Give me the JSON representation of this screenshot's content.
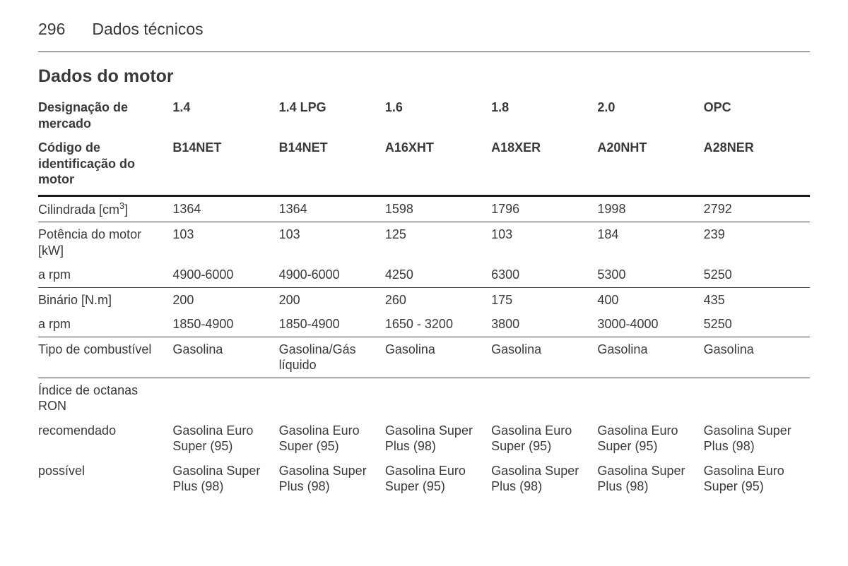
{
  "page": {
    "number": "296",
    "title": "Dados técnicos"
  },
  "section_title": "Dados do motor",
  "columns": [
    "1.4",
    "1.4 LPG",
    "1.6",
    "1.8",
    "2.0",
    "OPC"
  ],
  "header_rows": {
    "designation_label": "Designação de mercado",
    "engine_code_label": "Código de identificação do motor",
    "engine_codes": [
      "B14NET",
      "B14NET",
      "A16XHT",
      "A18XER",
      "A20NHT",
      "A28NER"
    ]
  },
  "rows": {
    "displacement": {
      "label_prefix": "Cilindrada [cm",
      "label_sup": "3",
      "label_suffix": "]",
      "values": [
        "1364",
        "1364",
        "1598",
        "1796",
        "1998",
        "2792"
      ]
    },
    "power": {
      "label": "Potência do motor [kW]",
      "values": [
        "103",
        "103",
        "125",
        "103",
        "184",
        "239"
      ]
    },
    "power_rpm": {
      "label": "a rpm",
      "values": [
        "4900-6000",
        "4900-6000",
        "4250",
        "6300",
        "5300",
        "5250"
      ]
    },
    "torque": {
      "label": "Binário [N.m]",
      "values": [
        "200",
        "200",
        "260",
        "175",
        "400",
        "435"
      ]
    },
    "torque_rpm": {
      "label": "a rpm",
      "values": [
        "1850-4900",
        "1850-4900",
        "1650 - 3200",
        "3800",
        "3000-4000",
        "5250"
      ]
    },
    "fuel_type": {
      "label": "Tipo de combustível",
      "values": [
        "Gasolina",
        "Gasolina/Gás líquido",
        "Gasolina",
        "Gasolina",
        "Gasolina",
        "Gasolina"
      ]
    },
    "octane_header": {
      "label": "Índice de octanas RON"
    },
    "recommended": {
      "label": "recomendado",
      "values": [
        "Gasolina Euro Super (95)",
        "Gasolina Euro Super (95)",
        "Gasolina Super Plus (98)",
        "Gasolina Euro Super (95)",
        "Gasolina Euro Super (95)",
        "Gasolina Super Plus (98)"
      ]
    },
    "possible": {
      "label": "possível",
      "values": [
        "Gasolina Super Plus (98)",
        "Gasolina Super Plus (98)",
        "Gasolina Euro Super (95)",
        "Gasolina Super Plus (98)",
        "Gasolina Super Plus (98)",
        "Gasolina Euro Super (95)"
      ]
    }
  }
}
